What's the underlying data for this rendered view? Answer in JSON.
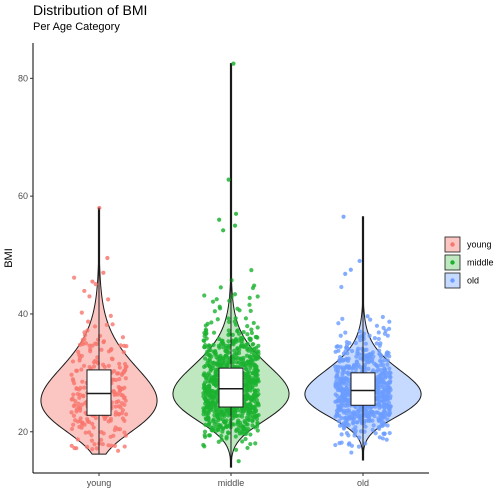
{
  "chart_data": {
    "type": "violin",
    "title": "Distribution of BMI",
    "subtitle": "Per Age Category",
    "xlabel": "",
    "ylabel": "BMI",
    "ylim": [
      13,
      86
    ],
    "yticks": [
      20,
      40,
      60,
      80
    ],
    "grid": false,
    "legend_position": "right",
    "categories": [
      "young",
      "middle",
      "old"
    ],
    "series": [
      {
        "name": "young",
        "color": "#f8766d",
        "fill": "#fbc6c2",
        "min": 16.2,
        "max": 58.0,
        "q1": 22.8,
        "median": 26.5,
        "q3": 30.5,
        "whisker_low": 16.2,
        "whisker_high": 58.0,
        "point_count": 260,
        "outliers": [
          58.0,
          49.5,
          47.0,
          45.5
        ]
      },
      {
        "name": "middle",
        "color": "#1bb12f",
        "fill": "#bfe8c0",
        "min": 14.0,
        "max": 82.5,
        "q1": 24.2,
        "median": 27.3,
        "q3": 30.8,
        "whisker_low": 14.0,
        "whisker_high": 82.5,
        "point_count": 900,
        "outliers": [
          82.5,
          62.8,
          57.0,
          56.0,
          55.0,
          54.2
        ]
      },
      {
        "name": "old",
        "color": "#6b9cff",
        "fill": "#c6d9ff",
        "min": 15.2,
        "max": 56.5,
        "q1": 24.5,
        "median": 27.0,
        "q3": 30.0,
        "whisker_low": 15.2,
        "whisker_high": 56.5,
        "point_count": 700,
        "outliers": [
          56.5,
          49.0,
          47.5,
          46.8
        ]
      }
    ]
  }
}
